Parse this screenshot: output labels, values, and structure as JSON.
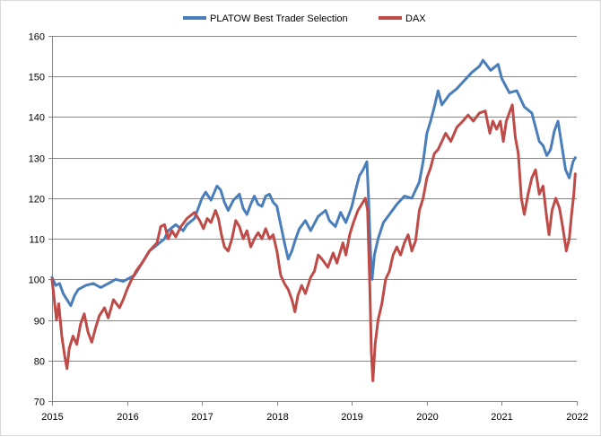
{
  "chart_data": {
    "type": "line",
    "title": "",
    "xlabel": "",
    "ylabel": "",
    "x_ticks": [
      "2015",
      "2016",
      "2017",
      "2018",
      "2019",
      "2020",
      "2021",
      "2022"
    ],
    "y_ticks": [
      70,
      80,
      90,
      100,
      110,
      120,
      130,
      140,
      150,
      160
    ],
    "xlim": [
      2015,
      2022
    ],
    "ylim": [
      70,
      160
    ],
    "grid": true,
    "legend_position": "top-center",
    "series": [
      {
        "name": "PLATOW Best Trader Selection",
        "color": "#4a7ebb",
        "points": [
          [
            2015.0,
            100.5
          ],
          [
            2015.05,
            98.5
          ],
          [
            2015.1,
            99.0
          ],
          [
            2015.15,
            96.5
          ],
          [
            2015.2,
            95.0
          ],
          [
            2015.25,
            93.5
          ],
          [
            2015.3,
            96.0
          ],
          [
            2015.35,
            97.5
          ],
          [
            2015.45,
            98.5
          ],
          [
            2015.55,
            99.0
          ],
          [
            2015.65,
            98.0
          ],
          [
            2015.75,
            99.0
          ],
          [
            2015.85,
            100.0
          ],
          [
            2015.95,
            99.5
          ],
          [
            2016.05,
            100.5
          ],
          [
            2016.1,
            101.0
          ],
          [
            2016.2,
            104.0
          ],
          [
            2016.3,
            107.0
          ],
          [
            2016.4,
            108.5
          ],
          [
            2016.5,
            110.0
          ],
          [
            2016.55,
            112.0
          ],
          [
            2016.65,
            113.5
          ],
          [
            2016.75,
            112.0
          ],
          [
            2016.8,
            113.5
          ],
          [
            2016.9,
            115.0
          ],
          [
            2017.0,
            120.0
          ],
          [
            2017.05,
            121.5
          ],
          [
            2017.12,
            119.5
          ],
          [
            2017.2,
            123.0
          ],
          [
            2017.25,
            122.0
          ],
          [
            2017.3,
            119.0
          ],
          [
            2017.35,
            117.0
          ],
          [
            2017.42,
            119.5
          ],
          [
            2017.5,
            121.0
          ],
          [
            2017.55,
            117.5
          ],
          [
            2017.6,
            116.0
          ],
          [
            2017.65,
            118.5
          ],
          [
            2017.7,
            120.5
          ],
          [
            2017.75,
            118.5
          ],
          [
            2017.8,
            118.0
          ],
          [
            2017.85,
            120.5
          ],
          [
            2017.9,
            121.0
          ],
          [
            2017.95,
            119.0
          ],
          [
            2018.0,
            118.0
          ],
          [
            2018.05,
            113.5
          ],
          [
            2018.1,
            109.0
          ],
          [
            2018.15,
            105.0
          ],
          [
            2018.2,
            107.0
          ],
          [
            2018.25,
            110.0
          ],
          [
            2018.3,
            112.5
          ],
          [
            2018.38,
            114.5
          ],
          [
            2018.45,
            112.0
          ],
          [
            2018.55,
            115.5
          ],
          [
            2018.65,
            117.0
          ],
          [
            2018.7,
            114.5
          ],
          [
            2018.78,
            113.0
          ],
          [
            2018.85,
            116.5
          ],
          [
            2018.92,
            114.0
          ],
          [
            2019.0,
            118.0
          ],
          [
            2019.05,
            122.0
          ],
          [
            2019.1,
            125.5
          ],
          [
            2019.15,
            127.0
          ],
          [
            2019.2,
            129.0
          ],
          [
            2019.22,
            121.0
          ],
          [
            2019.25,
            106.0
          ],
          [
            2019.27,
            100.0
          ],
          [
            2019.3,
            106.0
          ],
          [
            2019.35,
            110.0
          ],
          [
            2019.42,
            114.0
          ],
          [
            2019.5,
            116.0
          ],
          [
            2019.6,
            118.5
          ],
          [
            2019.7,
            120.5
          ],
          [
            2019.8,
            120.0
          ],
          [
            2019.9,
            124.0
          ],
          [
            2019.95,
            129.0
          ],
          [
            2020.0,
            136.0
          ],
          [
            2020.05,
            139.0
          ],
          [
            2020.1,
            142.5
          ],
          [
            2020.15,
            146.5
          ],
          [
            2020.2,
            143.0
          ],
          [
            2020.3,
            145.5
          ],
          [
            2020.4,
            147.0
          ],
          [
            2020.5,
            149.0
          ],
          [
            2020.6,
            151.0
          ],
          [
            2020.7,
            152.5
          ],
          [
            2020.75,
            154.0
          ],
          [
            2020.85,
            151.5
          ],
          [
            2020.95,
            153.0
          ],
          [
            2021.0,
            149.5
          ],
          [
            2021.1,
            146.0
          ],
          [
            2021.2,
            146.5
          ],
          [
            2021.3,
            142.5
          ],
          [
            2021.4,
            141.0
          ],
          [
            2021.5,
            134.0
          ],
          [
            2021.55,
            133.0
          ],
          [
            2021.6,
            130.5
          ],
          [
            2021.65,
            132.0
          ],
          [
            2021.7,
            136.5
          ],
          [
            2021.75,
            139.0
          ],
          [
            2021.8,
            133.0
          ],
          [
            2021.85,
            127.0
          ],
          [
            2021.9,
            125.0
          ],
          [
            2021.95,
            129.0
          ],
          [
            2021.98,
            130.0
          ]
        ]
      },
      {
        "name": "DAX",
        "color": "#be4b48",
        "points": [
          [
            2015.0,
            100.0
          ],
          [
            2015.03,
            95.0
          ],
          [
            2015.06,
            90.0
          ],
          [
            2015.09,
            94.0
          ],
          [
            2015.13,
            86.0
          ],
          [
            2015.17,
            81.0
          ],
          [
            2015.2,
            78.0
          ],
          [
            2015.23,
            83.0
          ],
          [
            2015.28,
            86.0
          ],
          [
            2015.33,
            84.0
          ],
          [
            2015.38,
            89.0
          ],
          [
            2015.43,
            91.5
          ],
          [
            2015.48,
            87.0
          ],
          [
            2015.53,
            84.5
          ],
          [
            2015.58,
            88.0
          ],
          [
            2015.63,
            91.0
          ],
          [
            2015.7,
            93.0
          ],
          [
            2015.75,
            90.5
          ],
          [
            2015.82,
            95.0
          ],
          [
            2015.9,
            93.0
          ],
          [
            2015.95,
            95.0
          ],
          [
            2016.0,
            97.5
          ],
          [
            2016.05,
            99.5
          ],
          [
            2016.12,
            102.0
          ],
          [
            2016.2,
            104.0
          ],
          [
            2016.3,
            107.0
          ],
          [
            2016.4,
            109.0
          ],
          [
            2016.45,
            113.0
          ],
          [
            2016.5,
            113.5
          ],
          [
            2016.55,
            110.0
          ],
          [
            2016.6,
            112.0
          ],
          [
            2016.65,
            110.5
          ],
          [
            2016.72,
            113.0
          ],
          [
            2016.8,
            115.0
          ],
          [
            2016.9,
            116.5
          ],
          [
            2016.97,
            114.5
          ],
          [
            2017.02,
            112.5
          ],
          [
            2017.07,
            115.0
          ],
          [
            2017.12,
            114.0
          ],
          [
            2017.18,
            117.0
          ],
          [
            2017.22,
            115.0
          ],
          [
            2017.26,
            111.0
          ],
          [
            2017.3,
            108.0
          ],
          [
            2017.35,
            107.0
          ],
          [
            2017.4,
            110.0
          ],
          [
            2017.45,
            114.5
          ],
          [
            2017.5,
            113.0
          ],
          [
            2017.55,
            110.0
          ],
          [
            2017.6,
            112.0
          ],
          [
            2017.65,
            108.0
          ],
          [
            2017.7,
            110.0
          ],
          [
            2017.75,
            111.5
          ],
          [
            2017.8,
            110.0
          ],
          [
            2017.85,
            112.5
          ],
          [
            2017.9,
            110.0
          ],
          [
            2017.95,
            111.0
          ],
          [
            2018.0,
            107.0
          ],
          [
            2018.05,
            101.0
          ],
          [
            2018.1,
            99.0
          ],
          [
            2018.15,
            97.5
          ],
          [
            2018.2,
            95.0
          ],
          [
            2018.24,
            92.0
          ],
          [
            2018.28,
            96.0
          ],
          [
            2018.33,
            98.5
          ],
          [
            2018.38,
            96.5
          ],
          [
            2018.45,
            100.5
          ],
          [
            2018.5,
            102.0
          ],
          [
            2018.55,
            106.0
          ],
          [
            2018.6,
            105.0
          ],
          [
            2018.68,
            103.0
          ],
          [
            2018.75,
            106.5
          ],
          [
            2018.8,
            104.0
          ],
          [
            2018.88,
            109.0
          ],
          [
            2018.92,
            106.0
          ],
          [
            2018.97,
            111.0
          ],
          [
            2019.02,
            114.0
          ],
          [
            2019.08,
            117.0
          ],
          [
            2019.13,
            118.5
          ],
          [
            2019.18,
            120.0
          ],
          [
            2019.21,
            117.0
          ],
          [
            2019.24,
            98.0
          ],
          [
            2019.26,
            82.0
          ],
          [
            2019.28,
            75.0
          ],
          [
            2019.31,
            84.0
          ],
          [
            2019.35,
            90.0
          ],
          [
            2019.4,
            94.0
          ],
          [
            2019.45,
            100.0
          ],
          [
            2019.5,
            102.0
          ],
          [
            2019.55,
            106.0
          ],
          [
            2019.6,
            108.0
          ],
          [
            2019.65,
            106.0
          ],
          [
            2019.7,
            109.0
          ],
          [
            2019.75,
            111.0
          ],
          [
            2019.8,
            107.0
          ],
          [
            2019.85,
            109.5
          ],
          [
            2019.9,
            117.0
          ],
          [
            2019.95,
            120.0
          ],
          [
            2020.0,
            125.0
          ],
          [
            2020.05,
            127.5
          ],
          [
            2020.1,
            131.0
          ],
          [
            2020.15,
            132.0
          ],
          [
            2020.2,
            134.0
          ],
          [
            2020.25,
            136.0
          ],
          [
            2020.32,
            134.0
          ],
          [
            2020.4,
            137.5
          ],
          [
            2020.48,
            139.0
          ],
          [
            2020.55,
            140.5
          ],
          [
            2020.62,
            139.0
          ],
          [
            2020.7,
            141.0
          ],
          [
            2020.78,
            141.5
          ],
          [
            2020.84,
            136.0
          ],
          [
            2020.88,
            139.0
          ],
          [
            2020.93,
            137.0
          ],
          [
            2020.98,
            139.0
          ],
          [
            2021.02,
            134.0
          ],
          [
            2021.06,
            139.0
          ],
          [
            2021.1,
            141.0
          ],
          [
            2021.14,
            143.0
          ],
          [
            2021.18,
            135.0
          ],
          [
            2021.22,
            131.0
          ],
          [
            2021.26,
            120.0
          ],
          [
            2021.3,
            116.0
          ],
          [
            2021.35,
            121.0
          ],
          [
            2021.4,
            125.0
          ],
          [
            2021.45,
            127.0
          ],
          [
            2021.5,
            121.0
          ],
          [
            2021.55,
            123.0
          ],
          [
            2021.6,
            115.0
          ],
          [
            2021.63,
            111.0
          ],
          [
            2021.67,
            117.0
          ],
          [
            2021.72,
            120.0
          ],
          [
            2021.77,
            117.5
          ],
          [
            2021.82,
            112.0
          ],
          [
            2021.86,
            107.0
          ],
          [
            2021.9,
            110.0
          ],
          [
            2021.93,
            116.0
          ],
          [
            2021.96,
            121.0
          ],
          [
            2021.98,
            126.0
          ]
        ]
      }
    ]
  }
}
